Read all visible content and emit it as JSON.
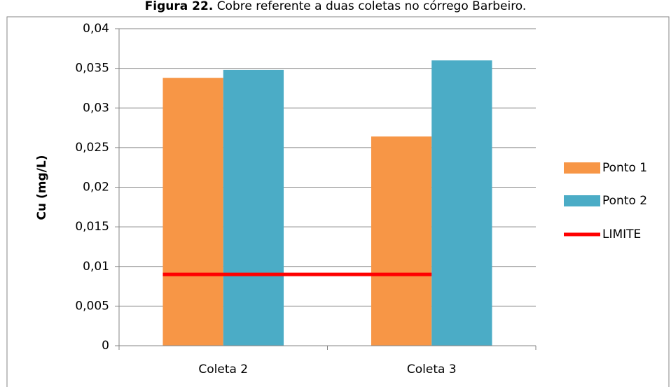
{
  "chart_data": {
    "type": "bar",
    "title_label": "Figura 22.",
    "title": "Cobre referente a duas coletas no córrego Barbeiro.",
    "y_label": "Cu (mg/L)",
    "categories": [
      "Coleta 2",
      "Coleta 3"
    ],
    "series": [
      {
        "name": "Ponto 1",
        "color": "#f79646",
        "values": [
          0.0338,
          0.0264
        ]
      },
      {
        "name": "Ponto 2",
        "color": "#4bacc6",
        "values": [
          0.0348,
          0.036
        ]
      },
      {
        "name": "LIMITE",
        "color": "#ff0000",
        "type": "line",
        "values": [
          0.009,
          0.009
        ]
      }
    ],
    "ylim": [
      0,
      0.04
    ],
    "yticks": [
      0,
      {
        "value": 0.005,
        "label": "0,005"
      },
      {
        "value": 0.01,
        "label": "0,01"
      },
      {
        "value": 0.015,
        "label": "0,015"
      },
      {
        "value": 0.02,
        "label": "0,02"
      },
      {
        "value": 0.025,
        "label": "0,025"
      },
      {
        "value": 0.03,
        "label": "0,03"
      },
      {
        "value": 0.035,
        "label": "0,035"
      },
      {
        "value": 0.04,
        "label": "0,04"
      }
    ],
    "grid": true,
    "legend": "right"
  }
}
